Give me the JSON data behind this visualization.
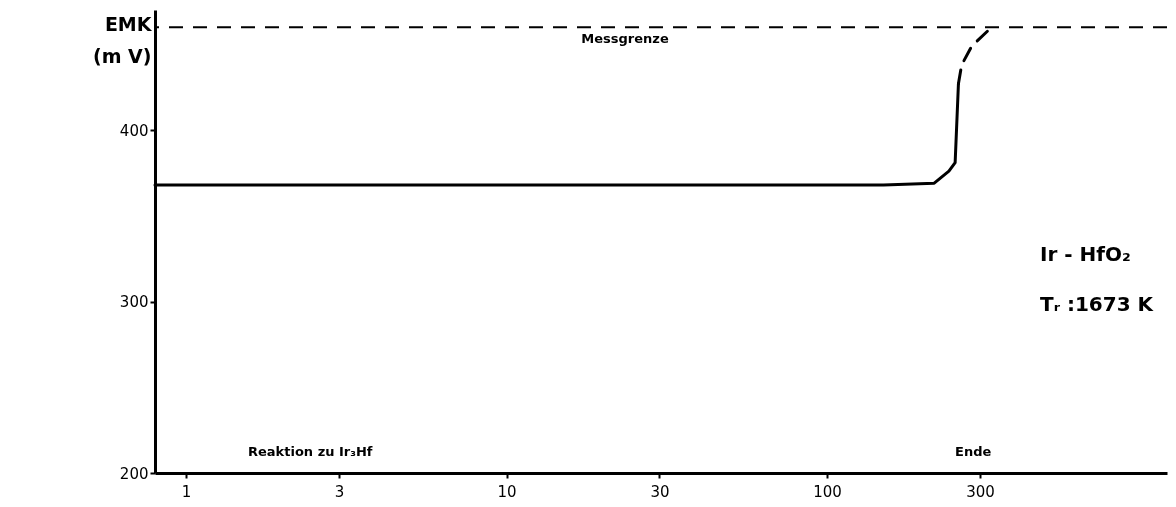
{
  "chart_data": {
    "type": "line",
    "ylabel": "EMK\n(m V)",
    "series": [
      {
        "color": "#000000",
        "line_style": "solid",
        "x": [
          0.8,
          150,
          216,
          240,
          251,
          257
        ],
        "values": [
          368,
          368,
          369,
          376,
          381,
          427
        ]
      },
      {
        "color": "#000000",
        "line_style": "dashed",
        "x": [
          257,
          263,
          283,
          318
        ],
        "values": [
          427,
          438,
          449,
          458
        ]
      }
    ],
    "xlim": [
      0.8,
      1150
    ],
    "xticks": [
      1,
      3,
      10,
      30,
      100,
      300
    ],
    "log": "x",
    "ylim": [
      200,
      470
    ],
    "yticks": [
      200,
      300,
      400
    ],
    "ref_lines": [
      {
        "axis": "y",
        "value": 460,
        "label": "Messgrenze",
        "line_style": "dashed",
        "color": "#000000"
      }
    ],
    "annotations": [
      "Reaktion zu Ir₃Hf",
      "Ende",
      "Ir  - HfO₂",
      "Tᵣ :1673 K"
    ],
    "grid": false
  }
}
